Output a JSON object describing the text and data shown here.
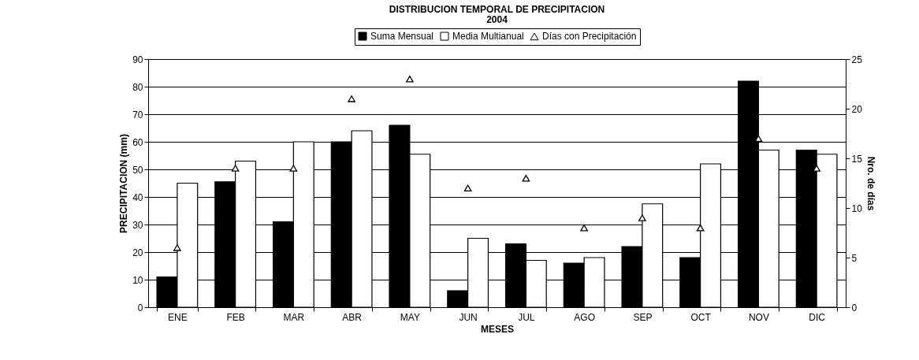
{
  "chart_data": {
    "type": "bar",
    "title": "DISTRIBUCION TEMPORAL DE PRECIPITACION",
    "subtitle": "2004",
    "xlabel": "MESES",
    "ylabel": "PRECIPITACION (mm)",
    "y2label": "Nro. de días",
    "categories": [
      "ENE",
      "FEB",
      "MAR",
      "ABR",
      "MAY",
      "JUN",
      "JUL",
      "AGO",
      "SEP",
      "OCT",
      "NOV",
      "DIC"
    ],
    "series": [
      {
        "name": "Suma Mensual",
        "color": "#000000",
        "values": [
          11,
          45.5,
          31,
          60,
          66,
          6,
          23,
          16,
          22,
          18,
          82,
          57
        ]
      },
      {
        "name": "Media Multianual",
        "color": "#ffffff",
        "values": [
          45,
          53,
          60,
          64,
          55.5,
          25,
          17,
          18,
          37.5,
          52,
          57,
          55.5
        ]
      },
      {
        "name": "Días con Precipitación",
        "type": "scatter",
        "axis": "y2",
        "marker": "triangle",
        "color": "#000000",
        "values": [
          6,
          14,
          14,
          21,
          23,
          12,
          13,
          8,
          9,
          8,
          17,
          14
        ]
      }
    ],
    "ylim": [
      0,
      90
    ],
    "yticks": [
      0,
      10,
      20,
      30,
      40,
      50,
      60,
      70,
      80,
      90
    ],
    "y2lim": [
      0,
      25
    ],
    "y2ticks": [
      0,
      5,
      10,
      15,
      20,
      25
    ],
    "grid": "y",
    "legend": "top"
  }
}
